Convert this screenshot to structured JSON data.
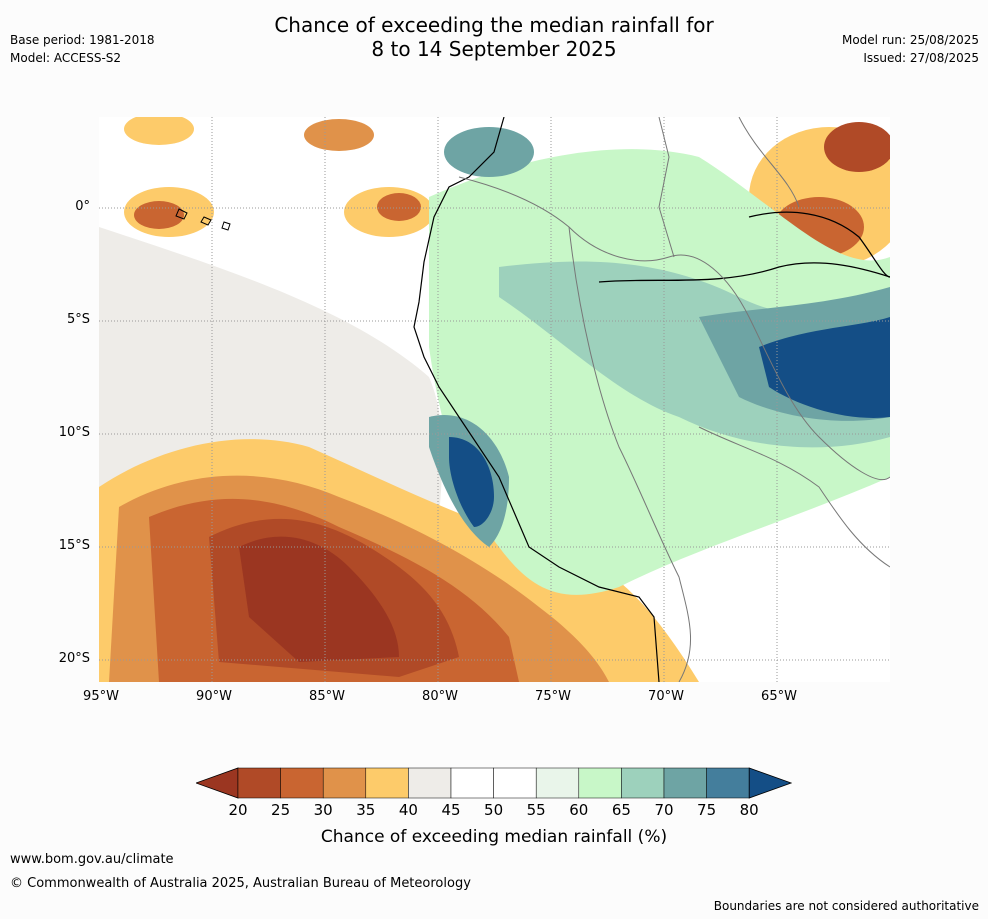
{
  "header": {
    "title_line1": "Chance of exceeding the median rainfall for",
    "title_line2": "8 to 14 September 2025",
    "base_period": "Base period: 1981-2018",
    "model": "Model: ACCESS-S2",
    "model_run": "Model run: 25/08/2025",
    "issued": "Issued: 27/08/2025"
  },
  "map": {
    "lat_ticks": [
      "0°",
      "5°S",
      "10°S",
      "15°S",
      "20°S"
    ],
    "lon_ticks": [
      "95°W",
      "90°W",
      "85°W",
      "80°W",
      "75°W",
      "70°W",
      "65°W"
    ]
  },
  "colorbar": {
    "labels": [
      "20",
      "25",
      "30",
      "35",
      "40",
      "45",
      "50",
      "55",
      "60",
      "65",
      "70",
      "75",
      "80"
    ],
    "colors": [
      "#9b3621",
      "#b04a27",
      "#c96531",
      "#e0924a",
      "#fdcb6a",
      "#eeece8",
      "#ffffff",
      "#ffffff",
      "#e9f5ea",
      "#c8f7c8",
      "#9dd1bc",
      "#6ea4a4",
      "#447e9c",
      "#144e86"
    ],
    "title": "Chance of exceeding median rainfall (%)"
  },
  "footer": {
    "website": "www.bom.gov.au/climate",
    "copyright": "© Commonwealth of Australia 2025, Australian Bureau of Meteorology",
    "disclaimer": "Boundaries are not considered authoritative"
  }
}
